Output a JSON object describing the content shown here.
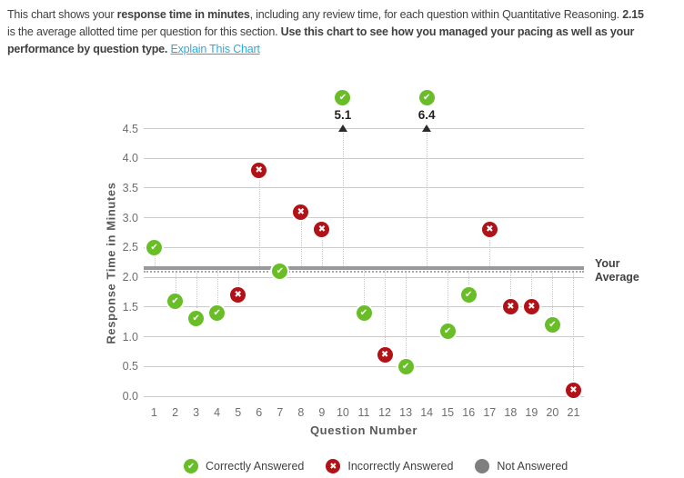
{
  "intro": {
    "lines": [
      [
        {
          "text": "This chart shows your "
        },
        {
          "text": "response time in minutes",
          "bold": true
        },
        {
          "text": ", including any review time, for each question within Quantitative Reasoning. "
        },
        {
          "text": "2.15",
          "bold": true
        }
      ],
      [
        {
          "text": "is the average allotted time per question for this section. "
        },
        {
          "text": "Use this chart to see how you managed your pacing as well as your",
          "bold": true
        }
      ],
      [
        {
          "text": "performance by question type. ",
          "bold": true
        },
        {
          "text": "Explain This Chart",
          "link": true
        }
      ]
    ]
  },
  "chart_data": {
    "type": "scatter",
    "title": "",
    "xlabel": "Question Number",
    "ylabel": "Response Time in Minutes",
    "ylim": [
      0,
      4.5
    ],
    "ytick_step": 0.5,
    "clip_max": 4.5,
    "grid": true,
    "average": {
      "value": 2.15,
      "label": "Your Average"
    },
    "x": [
      1,
      2,
      3,
      4,
      5,
      6,
      7,
      8,
      9,
      10,
      11,
      12,
      13,
      14,
      15,
      16,
      17,
      18,
      19,
      20,
      21
    ],
    "points": [
      {
        "q": 1,
        "minutes": 2.5,
        "status": "correct"
      },
      {
        "q": 2,
        "minutes": 1.6,
        "status": "correct"
      },
      {
        "q": 3,
        "minutes": 1.3,
        "status": "correct"
      },
      {
        "q": 4,
        "minutes": 1.4,
        "status": "correct"
      },
      {
        "q": 5,
        "minutes": 1.7,
        "status": "incorrect"
      },
      {
        "q": 6,
        "minutes": 3.8,
        "status": "incorrect"
      },
      {
        "q": 7,
        "minutes": 2.1,
        "status": "correct"
      },
      {
        "q": 8,
        "minutes": 3.1,
        "status": "incorrect"
      },
      {
        "q": 9,
        "minutes": 2.8,
        "status": "incorrect"
      },
      {
        "q": 10,
        "minutes": 5.1,
        "status": "correct"
      },
      {
        "q": 11,
        "minutes": 1.4,
        "status": "correct"
      },
      {
        "q": 12,
        "minutes": 0.7,
        "status": "incorrect"
      },
      {
        "q": 13,
        "minutes": 0.5,
        "status": "correct"
      },
      {
        "q": 14,
        "minutes": 6.4,
        "status": "correct"
      },
      {
        "q": 15,
        "minutes": 1.1,
        "status": "correct"
      },
      {
        "q": 16,
        "minutes": 1.7,
        "status": "correct"
      },
      {
        "q": 17,
        "minutes": 2.8,
        "status": "incorrect"
      },
      {
        "q": 18,
        "minutes": 1.5,
        "status": "incorrect"
      },
      {
        "q": 19,
        "minutes": 1.5,
        "status": "incorrect"
      },
      {
        "q": 20,
        "minutes": 1.2,
        "status": "correct"
      },
      {
        "q": 21,
        "minutes": 0.1,
        "status": "incorrect"
      }
    ],
    "legend": [
      {
        "label": "Correctly Answered",
        "status": "correct",
        "icon": "check-icon"
      },
      {
        "label": "Incorrectly Answered",
        "status": "incorrect",
        "icon": "x-icon"
      },
      {
        "label": "Not Answered",
        "status": "not_answered",
        "icon": "circle-icon"
      }
    ],
    "legend_position": "bottom"
  },
  "colors": {
    "correct": "#69be28",
    "incorrect": "#b11218",
    "not_answered": "#7d7f81",
    "average_line": "#97999b",
    "link": "#29abe2",
    "text": "#414042"
  }
}
